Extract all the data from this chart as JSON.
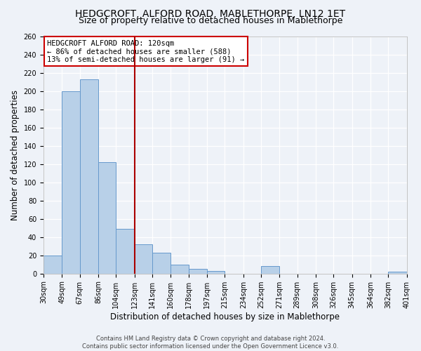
{
  "title": "HEDGCROFT, ALFORD ROAD, MABLETHORPE, LN12 1ET",
  "subtitle": "Size of property relative to detached houses in Mablethorpe",
  "xlabel": "Distribution of detached houses by size in Mablethorpe",
  "ylabel": "Number of detached properties",
  "bin_labels": [
    "30sqm",
    "49sqm",
    "67sqm",
    "86sqm",
    "104sqm",
    "123sqm",
    "141sqm",
    "160sqm",
    "178sqm",
    "197sqm",
    "215sqm",
    "234sqm",
    "252sqm",
    "271sqm",
    "289sqm",
    "308sqm",
    "326sqm",
    "345sqm",
    "364sqm",
    "382sqm",
    "401sqm"
  ],
  "bin_edges": [
    30,
    49,
    67,
    86,
    104,
    123,
    141,
    160,
    178,
    197,
    215,
    234,
    252,
    271,
    289,
    308,
    326,
    345,
    364,
    382,
    401
  ],
  "bar_heights": [
    20,
    200,
    213,
    122,
    49,
    32,
    23,
    10,
    5,
    3,
    0,
    0,
    8,
    0,
    0,
    0,
    0,
    0,
    0,
    2,
    0
  ],
  "bar_color": "#b8d0e8",
  "bar_edge_color": "#6699cc",
  "vline_x": 123,
  "vline_color": "#aa0000",
  "annotation_text": "HEDGCROFT ALFORD ROAD: 120sqm\n← 86% of detached houses are smaller (588)\n13% of semi-detached houses are larger (91) →",
  "annotation_box_color": "#ffffff",
  "annotation_box_edge_color": "#cc0000",
  "ylim": [
    0,
    260
  ],
  "yticks": [
    0,
    20,
    40,
    60,
    80,
    100,
    120,
    140,
    160,
    180,
    200,
    220,
    240,
    260
  ],
  "footer1": "Contains HM Land Registry data © Crown copyright and database right 2024.",
  "footer2": "Contains public sector information licensed under the Open Government Licence v3.0.",
  "background_color": "#eef2f8",
  "grid_color": "#ffffff",
  "title_fontsize": 10,
  "subtitle_fontsize": 9,
  "label_fontsize": 8.5,
  "tick_fontsize": 7,
  "annotation_fontsize": 7.5,
  "footer_fontsize": 6
}
